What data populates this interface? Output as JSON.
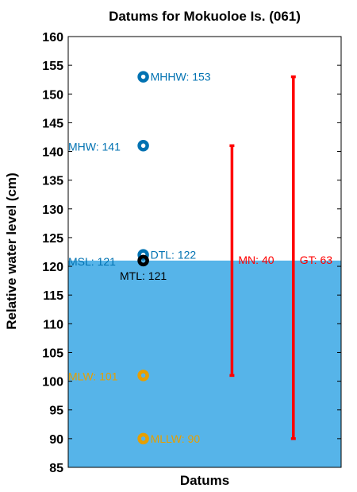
{
  "chart_data": {
    "type": "scatter",
    "title": "Datums for Mokuoloe Is. (061)",
    "xlabel": "Datums",
    "ylabel": "Relative water level (cm)",
    "ylim": [
      85,
      160
    ],
    "yticks": [
      85,
      90,
      95,
      100,
      105,
      110,
      115,
      120,
      125,
      130,
      135,
      140,
      145,
      150,
      155,
      160
    ],
    "xlim": [
      0,
      4
    ],
    "grid": false,
    "shaded_area": {
      "from": 85,
      "to": 121,
      "color": "#56b4e9"
    },
    "points": [
      {
        "name": "MHHW",
        "value": 153,
        "label": "MHHW: 153",
        "color": "#0072b2",
        "label_side": "right"
      },
      {
        "name": "MHW",
        "value": 141,
        "label": "MHW: 141",
        "color": "#0072b2",
        "label_side": "left"
      },
      {
        "name": "DTL",
        "value": 122,
        "label": "DTL: 122",
        "color": "#0072b2",
        "label_side": "right"
      },
      {
        "name": "MSL",
        "value": 121,
        "label": "MSL: 121",
        "color": "#0072b2",
        "label_side": "left"
      },
      {
        "name": "MTL",
        "value": 121,
        "label": "MTL: 121",
        "color": "#000000",
        "label_side": "below"
      },
      {
        "name": "MLW",
        "value": 101,
        "label": "MLW: 101",
        "color": "#e69f00",
        "label_side": "left"
      },
      {
        "name": "MLLW",
        "value": 90,
        "label": "MLLW: 90",
        "color": "#e69f00",
        "label_side": "right"
      }
    ],
    "ranges": [
      {
        "name": "MN",
        "from": 101,
        "to": 141,
        "label": "MN: 40",
        "color": "#ff0000"
      },
      {
        "name": "GT",
        "from": 90,
        "to": 153,
        "label": "GT: 63",
        "color": "#ff0000"
      }
    ]
  }
}
